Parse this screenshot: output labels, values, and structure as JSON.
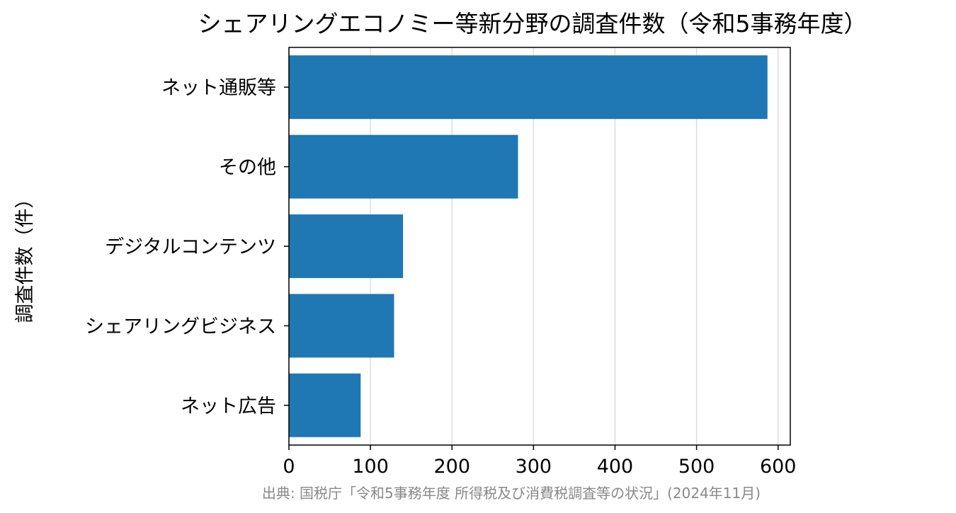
{
  "chart_data": {
    "type": "bar",
    "orientation": "horizontal",
    "title": "シェアリングエコノミー等新分野の調査件数（令和5事務年度）",
    "ylabel": "調査件数（件）",
    "xlabel": "",
    "categories": [
      "ネット通販等",
      "その他",
      "デジタルコンテンツ",
      "シェアリングビジネス",
      "ネット広告"
    ],
    "values": [
      587,
      281,
      140,
      129,
      88
    ],
    "xlim": [
      0,
      615
    ],
    "xticks": [
      "0",
      "100",
      "200",
      "300",
      "400",
      "500",
      "600"
    ],
    "grid": "vertical",
    "bar_color": "#1f77b4",
    "source": "出典: 国税庁「令和5事務年度 所得税及び消費税調査等の状況」(2024年11月)"
  }
}
